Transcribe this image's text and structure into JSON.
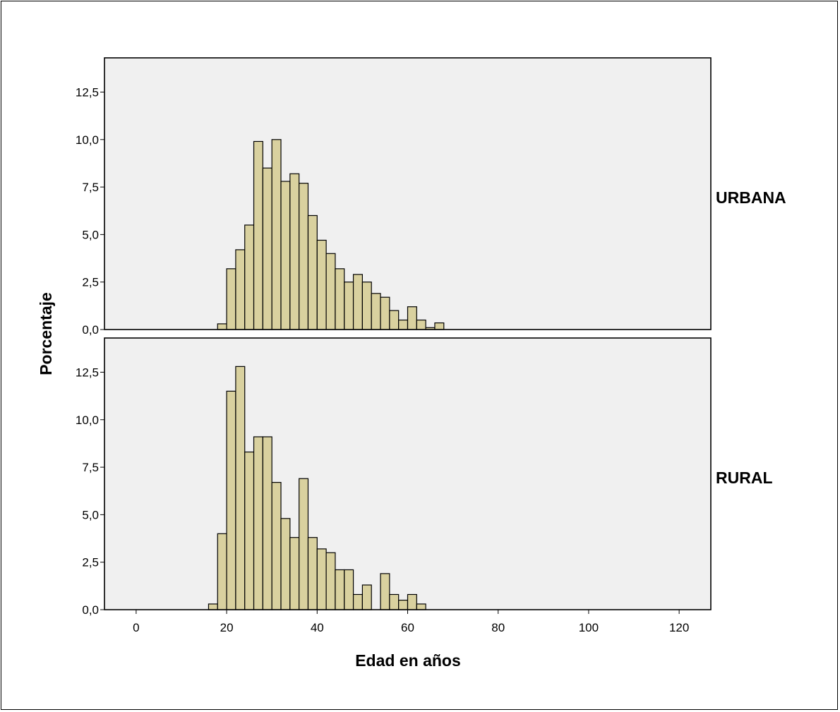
{
  "chart_data": {
    "type": "bar",
    "histogram": true,
    "xlabel": "Edad en años",
    "ylabel": "Porcentaje",
    "xlim": [
      -7,
      127
    ],
    "ylim": [
      0,
      14.3
    ],
    "xticks": [
      0,
      20,
      40,
      60,
      80,
      100,
      120
    ],
    "yticks": [
      "0,0",
      "2,5",
      "5,0",
      "7,5",
      "10,0",
      "12,5"
    ],
    "bin_width": 2,
    "bar_color": "#d9d19f",
    "panel_background": "#f0f0f0",
    "panels": [
      {
        "label": "URBANA",
        "bins": [
          {
            "x": 18,
            "y": 0.3
          },
          {
            "x": 20,
            "y": 3.2
          },
          {
            "x": 22,
            "y": 4.2
          },
          {
            "x": 24,
            "y": 5.5
          },
          {
            "x": 26,
            "y": 9.9
          },
          {
            "x": 28,
            "y": 8.5
          },
          {
            "x": 30,
            "y": 10.0
          },
          {
            "x": 32,
            "y": 7.8
          },
          {
            "x": 34,
            "y": 8.2
          },
          {
            "x": 36,
            "y": 7.7
          },
          {
            "x": 38,
            "y": 6.0
          },
          {
            "x": 40,
            "y": 4.7
          },
          {
            "x": 42,
            "y": 4.0
          },
          {
            "x": 44,
            "y": 3.2
          },
          {
            "x": 46,
            "y": 2.5
          },
          {
            "x": 48,
            "y": 2.9
          },
          {
            "x": 50,
            "y": 2.5
          },
          {
            "x": 52,
            "y": 1.9
          },
          {
            "x": 54,
            "y": 1.7
          },
          {
            "x": 56,
            "y": 1.0
          },
          {
            "x": 58,
            "y": 0.5
          },
          {
            "x": 60,
            "y": 1.2
          },
          {
            "x": 62,
            "y": 0.5
          },
          {
            "x": 64,
            "y": 0.1
          },
          {
            "x": 66,
            "y": 0.35
          }
        ]
      },
      {
        "label": "RURAL",
        "bins": [
          {
            "x": 16,
            "y": 0.3
          },
          {
            "x": 18,
            "y": 4.0
          },
          {
            "x": 20,
            "y": 11.5
          },
          {
            "x": 22,
            "y": 12.8
          },
          {
            "x": 24,
            "y": 8.3
          },
          {
            "x": 26,
            "y": 9.1
          },
          {
            "x": 28,
            "y": 9.1
          },
          {
            "x": 30,
            "y": 6.7
          },
          {
            "x": 32,
            "y": 4.8
          },
          {
            "x": 34,
            "y": 3.8
          },
          {
            "x": 36,
            "y": 6.9
          },
          {
            "x": 38,
            "y": 3.8
          },
          {
            "x": 40,
            "y": 3.2
          },
          {
            "x": 42,
            "y": 3.0
          },
          {
            "x": 44,
            "y": 2.1
          },
          {
            "x": 46,
            "y": 2.1
          },
          {
            "x": 48,
            "y": 0.8
          },
          {
            "x": 50,
            "y": 1.3
          },
          {
            "x": 54,
            "y": 1.9
          },
          {
            "x": 56,
            "y": 0.8
          },
          {
            "x": 58,
            "y": 0.5
          },
          {
            "x": 60,
            "y": 0.8
          },
          {
            "x": 62,
            "y": 0.3
          }
        ]
      }
    ]
  }
}
